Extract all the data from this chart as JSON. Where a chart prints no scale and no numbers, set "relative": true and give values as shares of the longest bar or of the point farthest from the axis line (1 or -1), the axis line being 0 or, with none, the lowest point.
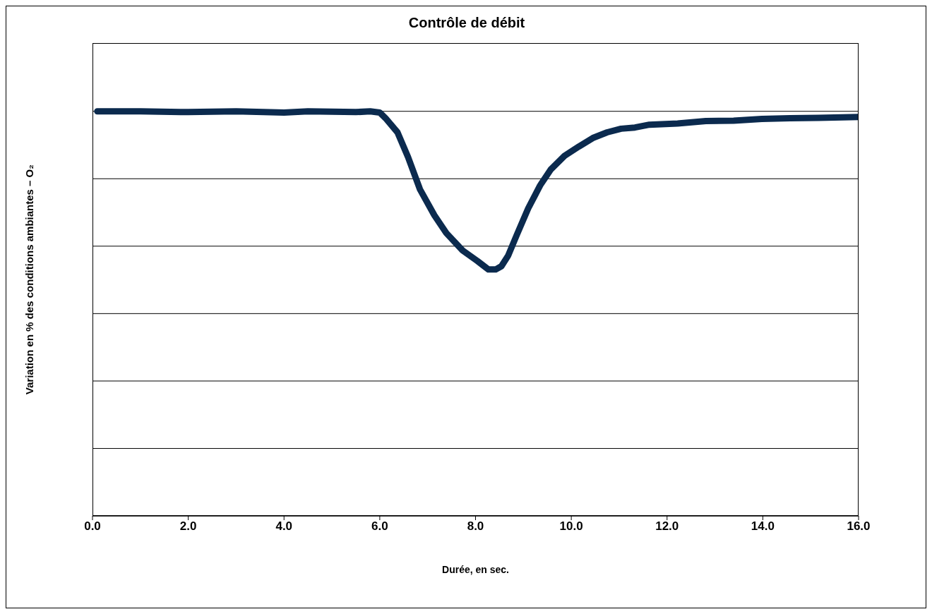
{
  "chart_data": {
    "type": "line",
    "title": "Contrôle de débit",
    "xlabel": "Durée, en sec.",
    "ylabel": "Variation en % des conditions ambiantes – O₂",
    "relative": true,
    "grid": "y",
    "legend": false,
    "marker": "none",
    "line_style": "solid",
    "xlim": [
      0,
      16
    ],
    "xticks": [
      {
        "value": 0,
        "label": "0.0"
      },
      {
        "value": 2,
        "label": "2.0"
      },
      {
        "value": 4,
        "label": "4.0"
      },
      {
        "value": 6,
        "label": "6.0"
      },
      {
        "value": 8,
        "label": "8.0"
      },
      {
        "value": 10,
        "label": "10.0"
      },
      {
        "value": 12,
        "label": "12.0"
      },
      {
        "value": 14,
        "label": "14.0"
      },
      {
        "value": 16,
        "label": "16.0"
      }
    ],
    "x": [
      0.1,
      0.5,
      1.0,
      2.0,
      3.0,
      4.0,
      4.5,
      5.5,
      5.8,
      6.0,
      6.12,
      6.37,
      6.59,
      6.84,
      7.14,
      7.39,
      7.73,
      8.04,
      8.27,
      8.42,
      8.54,
      8.68,
      8.86,
      9.1,
      9.35,
      9.57,
      9.86,
      10.16,
      10.45,
      10.75,
      11.04,
      11.33,
      11.63,
      12.22,
      12.81,
      13.39,
      13.98,
      14.57,
      15.16,
      16.0
    ],
    "series": [
      {
        "color": "#0b2a4e",
        "values": [
          1.0,
          1.0,
          1.0,
          0.998,
          1.0,
          0.997,
          1.0,
          0.998,
          1.0,
          0.997,
          0.983,
          0.948,
          0.887,
          0.807,
          0.743,
          0.699,
          0.656,
          0.63,
          0.609,
          0.609,
          0.617,
          0.643,
          0.694,
          0.76,
          0.817,
          0.856,
          0.89,
          0.913,
          0.934,
          0.948,
          0.957,
          0.96,
          0.967,
          0.97,
          0.976,
          0.977,
          0.981,
          0.983,
          0.984,
          0.986
        ]
      }
    ]
  }
}
